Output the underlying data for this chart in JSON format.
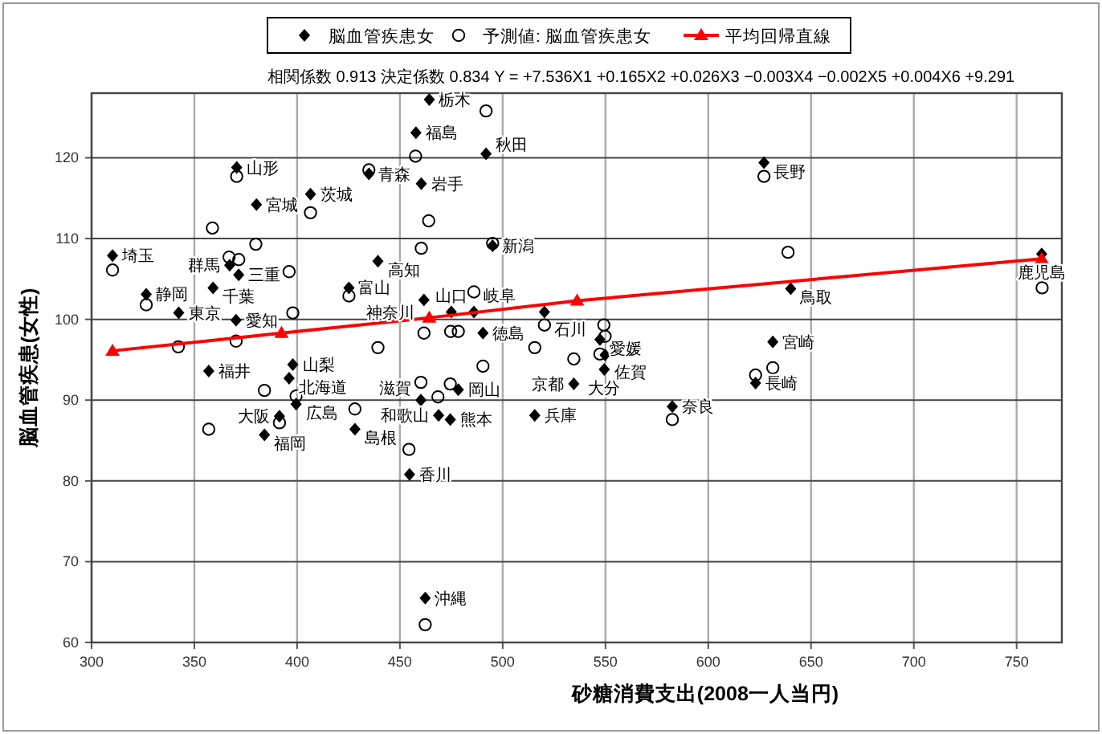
{
  "chart_data": {
    "type": "scatter",
    "title": "相関係数  0.913  決定係数 0.834  Y =  +7.536X1 +0.165X2 +0.026X3 −0.003X4 −0.002X5 +0.004X6 +9.291",
    "xlabel": "砂糖消費支出(2008一人当円)",
    "ylabel": "脳血管疾患(女性)",
    "xlim": [
      300,
      772
    ],
    "xticks": [
      300,
      350,
      400,
      450,
      500,
      550,
      600,
      650,
      700,
      750
    ],
    "ylim": [
      60,
      128
    ],
    "yticks": [
      60,
      70,
      80,
      90,
      100,
      110,
      120
    ],
    "grid": true,
    "legend": "top",
    "series": [
      {
        "name": "脳血管疾患女",
        "marker": "diamond",
        "color": "#000000",
        "x": [
          464.3,
          457.8,
          491.9,
          627.1,
          370.6,
          434.9,
          460.4,
          406.5,
          380.2,
          495.1,
          762.2,
          310.2,
          439.3,
          367.2,
          371.6,
          359.1,
          425.2,
          640.1,
          326.6,
          461.7,
          475,
          486,
          520.3,
          342.4,
          370.3,
          490.4,
          547.3,
          631.4,
          549.8,
          397.9,
          549.4,
          357,
          396.1,
          623,
          534.6,
          478.4,
          460.2,
          399.5,
          582.5,
          468.8,
          515.6,
          391.4,
          474.5,
          428.1,
          384.1,
          454.7,
          462.3
        ],
        "values": [
          127.2,
          123.1,
          120.5,
          119.4,
          118.8,
          118.0,
          116.8,
          115.5,
          114.2,
          109.1,
          108.1,
          107.9,
          107.2,
          106.7,
          105.5,
          103.9,
          103.9,
          103.8,
          103.1,
          102.4,
          100.9,
          100.9,
          100.9,
          100.8,
          99.9,
          98.3,
          97.5,
          97.2,
          95.6,
          94.4,
          93.8,
          93.6,
          92.7,
          92.1,
          92.0,
          91.3,
          90.0,
          89.5,
          89.2,
          88.1,
          88.1,
          88.0,
          87.6,
          86.4,
          85.7,
          80.8,
          65.5
        ]
      },
      {
        "name": "予測値: 脳血管疾患女",
        "marker": "circle",
        "color": "#000000",
        "x": [
          457.6,
          370.6,
          434.9,
          406.5,
          358.8,
          464,
          310.2,
          366.9,
          371.6,
          379.9,
          396.1,
          460.4,
          326.6,
          425.2,
          397.9,
          342.2,
          370.3,
          439.3,
          461.7,
          491.9,
          627.1,
          495.1,
          638.8,
          486,
          474.7,
          478.4,
          515.6,
          520.3,
          534.6,
          490.4,
          460.2,
          474.5,
          468.5,
          454.4,
          462.3,
          428.1,
          384.1,
          391.4,
          399.5,
          357,
          762.4,
          549.2,
          549.8,
          547.3,
          631.4,
          623,
          582.5
        ],
        "values": [
          120.2,
          117.7,
          118.5,
          113.2,
          111.3,
          112.2,
          106.1,
          107.7,
          107.4,
          109.3,
          105.9,
          108.8,
          101.8,
          102.9,
          100.8,
          96.6,
          97.3,
          96.5,
          98.3,
          125.8,
          117.7,
          109.4,
          108.3,
          103.4,
          98.5,
          98.5,
          96.5,
          99.3,
          95.1,
          94.2,
          92.2,
          92.0,
          90.4,
          83.9,
          62.2,
          88.9,
          91.2,
          87.2,
          90.5,
          86.4,
          103.9,
          99.3,
          97.9,
          95.7,
          94.0,
          93.1,
          87.6
        ]
      },
      {
        "name": "平均回帰直線",
        "type": "line",
        "marker": "triangle",
        "line_style": "solid",
        "color": "#ff0000",
        "x": [
          310.2,
          392.4,
          464.3,
          536.2,
          762.2
        ],
        "values": [
          96.1,
          98.3,
          100.2,
          102.3,
          107.5
        ]
      }
    ],
    "annotations": [
      {
        "text": "栃木",
        "x": 464.3,
        "y": 127.2
      },
      {
        "text": "福島",
        "x": 457.8,
        "y": 123.1
      },
      {
        "text": "秋田",
        "x": 491.9,
        "y": 120.5
      },
      {
        "text": "長野",
        "x": 627.1,
        "y": 119.4
      },
      {
        "text": "山形",
        "x": 370.6,
        "y": 118.8
      },
      {
        "text": "青森",
        "x": 434.9,
        "y": 118.0
      },
      {
        "text": "岩手",
        "x": 460.4,
        "y": 116.8
      },
      {
        "text": "茨城",
        "x": 406.5,
        "y": 115.5
      },
      {
        "text": "宮城",
        "x": 380.2,
        "y": 114.2
      },
      {
        "text": "新潟",
        "x": 495.1,
        "y": 109.1
      },
      {
        "text": "鹿児島",
        "x": 762.2,
        "y": 108.1
      },
      {
        "text": "埼玉",
        "x": 310.2,
        "y": 107.9
      },
      {
        "text": "高知",
        "x": 439.3,
        "y": 107.2
      },
      {
        "text": "群馬",
        "x": 367.2,
        "y": 106.7
      },
      {
        "text": "三重",
        "x": 371.6,
        "y": 105.5
      },
      {
        "text": "千葉",
        "x": 359.1,
        "y": 103.9
      },
      {
        "text": "富山",
        "x": 425.2,
        "y": 103.9
      },
      {
        "text": "鳥取",
        "x": 640.1,
        "y": 103.8
      },
      {
        "text": "静岡",
        "x": 326.6,
        "y": 103.1
      },
      {
        "text": "神奈川",
        "x": 461.7,
        "y": 102.4
      },
      {
        "text": "山口",
        "x": 475,
        "y": 100.9
      },
      {
        "text": "岐阜",
        "x": 486,
        "y": 100.9
      },
      {
        "text": "石川",
        "x": 520.3,
        "y": 100.9
      },
      {
        "text": "東京",
        "x": 342.4,
        "y": 100.8
      },
      {
        "text": "愛知",
        "x": 370.3,
        "y": 99.9
      },
      {
        "text": "徳島",
        "x": 490.4,
        "y": 98.3
      },
      {
        "text": "愛媛",
        "x": 547.3,
        "y": 97.5
      },
      {
        "text": "宮崎",
        "x": 631.4,
        "y": 97.2
      },
      {
        "text": "佐賀",
        "x": 549.8,
        "y": 95.6
      },
      {
        "text": "山梨",
        "x": 397.9,
        "y": 94.4
      },
      {
        "text": "大分",
        "x": 549.4,
        "y": 93.8
      },
      {
        "text": "福井",
        "x": 357,
        "y": 93.6
      },
      {
        "text": "北海道",
        "x": 396.1,
        "y": 92.7
      },
      {
        "text": "長崎",
        "x": 623,
        "y": 92.1
      },
      {
        "text": "京都",
        "x": 534.6,
        "y": 92.0
      },
      {
        "text": "岡山",
        "x": 478.4,
        "y": 91.3
      },
      {
        "text": "滋賀",
        "x": 460.2,
        "y": 90.0
      },
      {
        "text": "広島",
        "x": 399.5,
        "y": 89.5
      },
      {
        "text": "奈良",
        "x": 582.5,
        "y": 89.2
      },
      {
        "text": "和歌山",
        "x": 468.8,
        "y": 88.1
      },
      {
        "text": "兵庫",
        "x": 515.6,
        "y": 88.1
      },
      {
        "text": "大阪",
        "x": 391.4,
        "y": 88.0
      },
      {
        "text": "熊本",
        "x": 474.5,
        "y": 87.6
      },
      {
        "text": "島根",
        "x": 428.1,
        "y": 86.4
      },
      {
        "text": "福岡",
        "x": 384.1,
        "y": 85.7
      },
      {
        "text": "香川",
        "x": 454.7,
        "y": 80.8
      },
      {
        "text": "沖縄",
        "x": 462.3,
        "y": 65.5
      }
    ]
  }
}
